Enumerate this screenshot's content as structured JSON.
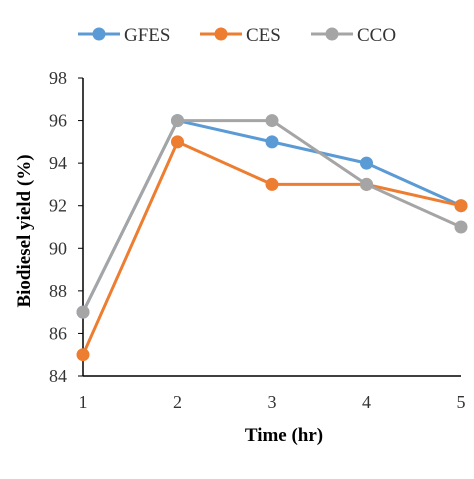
{
  "chart_data": {
    "type": "line",
    "xlabel": "Time (hr)",
    "ylabel": "Biodiesel yield (%)",
    "x": [
      1,
      2,
      3,
      4,
      5
    ],
    "ylim": [
      84,
      98
    ],
    "yticks": [
      84,
      86,
      88,
      90,
      92,
      94,
      96,
      98
    ],
    "grid": false,
    "legend_position": "top",
    "series": [
      {
        "name": "GFES",
        "color": "#5B9BD5",
        "values": [
          87,
          96,
          95,
          94,
          92
        ]
      },
      {
        "name": "CES",
        "color": "#ED7D31",
        "values": [
          85,
          95,
          93,
          93,
          92
        ]
      },
      {
        "name": "CCO",
        "color": "#A5A5A5",
        "values": [
          87,
          96,
          96,
          93,
          91
        ]
      }
    ]
  }
}
